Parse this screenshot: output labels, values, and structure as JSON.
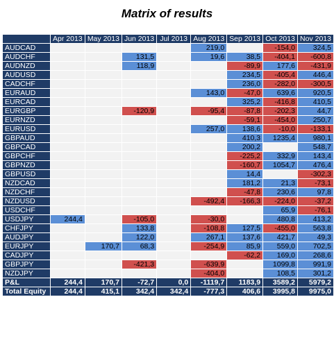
{
  "chart_data": {
    "type": "heatmap",
    "title": "Matrix of results",
    "columns": [
      "Apr 2013",
      "May 2013",
      "Jun 2013",
      "Jul 2013",
      "Aug 2013",
      "Sep 2013",
      "Oct 2013",
      "Nov 2013"
    ],
    "rows": [
      {
        "pair": "AUDCAD",
        "values": [
          null,
          null,
          null,
          null,
          "219,0",
          null,
          "-154,0",
          "324,5"
        ]
      },
      {
        "pair": "AUDCHF",
        "values": [
          null,
          null,
          "131,5",
          null,
          "19,6",
          "38,5",
          "-404,1",
          "-600,8"
        ]
      },
      {
        "pair": "AUDNZD",
        "values": [
          null,
          null,
          "118,9",
          null,
          null,
          "-89,9",
          "177,6",
          "-431,9"
        ]
      },
      {
        "pair": "AUDUSD",
        "values": [
          null,
          null,
          null,
          null,
          null,
          "234,5",
          "-405,4",
          "446,4"
        ]
      },
      {
        "pair": "CADCHF",
        "values": [
          null,
          null,
          null,
          null,
          null,
          "236,0",
          "-282,0",
          "-300,5"
        ]
      },
      {
        "pair": "EURAUD",
        "values": [
          null,
          null,
          null,
          null,
          "143,0",
          "-47,0",
          "639,6",
          "920,5"
        ]
      },
      {
        "pair": "EURCAD",
        "values": [
          null,
          null,
          null,
          null,
          null,
          "325,2",
          "-416,8",
          "410,5"
        ]
      },
      {
        "pair": "EURGBP",
        "values": [
          null,
          null,
          "-120,9",
          null,
          "-95,4",
          "-87,8",
          "-202,3",
          "44,7"
        ]
      },
      {
        "pair": "EURNZD",
        "values": [
          null,
          null,
          null,
          null,
          null,
          "-59,1",
          "-454,0",
          "250,7"
        ]
      },
      {
        "pair": "EURUSD",
        "values": [
          null,
          null,
          null,
          null,
          "257,0",
          "138,6",
          "-10,0",
          "-133,1"
        ]
      },
      {
        "pair": "GBPAUD",
        "values": [
          null,
          null,
          null,
          null,
          null,
          "410,3",
          "1235,4",
          "980,1"
        ]
      },
      {
        "pair": "GBPCAD",
        "values": [
          null,
          null,
          null,
          null,
          null,
          "200,2",
          null,
          "548,7"
        ]
      },
      {
        "pair": "GBPCHF",
        "values": [
          null,
          null,
          null,
          null,
          null,
          "-225,2",
          "332,9",
          "143,4"
        ]
      },
      {
        "pair": "GBPNZD",
        "values": [
          null,
          null,
          null,
          null,
          null,
          "-160,7",
          "1054,7",
          "476,4"
        ]
      },
      {
        "pair": "GBPUSD",
        "values": [
          null,
          null,
          null,
          null,
          null,
          "14,4",
          null,
          "-302,3"
        ]
      },
      {
        "pair": "NZDCAD",
        "values": [
          null,
          null,
          null,
          null,
          null,
          "181,2",
          "21,3",
          "-73,1"
        ]
      },
      {
        "pair": "NZDCHF",
        "values": [
          null,
          null,
          null,
          null,
          null,
          "-47,8",
          "230,6",
          "97,8"
        ]
      },
      {
        "pair": "NZDUSD",
        "values": [
          null,
          null,
          null,
          null,
          "-492,4",
          "-166,3",
          "-224,0",
          "-37,2"
        ]
      },
      {
        "pair": "USDCHF",
        "values": [
          null,
          null,
          null,
          null,
          null,
          null,
          "65,9",
          "-76,1"
        ]
      },
      {
        "pair": "USDJPY",
        "values": [
          "244,4",
          null,
          "-105,0",
          null,
          "-30,0",
          null,
          "480,8",
          "413,2"
        ]
      },
      {
        "pair": "CHFJPY",
        "values": [
          null,
          null,
          "133,8",
          null,
          "-108,8",
          "127,5",
          "-455,0",
          "563,8"
        ]
      },
      {
        "pair": "AUDJPY",
        "values": [
          null,
          null,
          "122,0",
          null,
          "267,1",
          "137,6",
          "421,7",
          "49,3"
        ]
      },
      {
        "pair": "EURJPY",
        "values": [
          null,
          "170,7",
          "68,3",
          null,
          "-254,9",
          "85,9",
          "559,0",
          "702,5"
        ]
      },
      {
        "pair": "CADJPY",
        "values": [
          null,
          null,
          null,
          null,
          null,
          "-62,2",
          "169,0",
          "268,6"
        ]
      },
      {
        "pair": "GBPJPY",
        "values": [
          null,
          null,
          "-421,3",
          null,
          "-639,9",
          null,
          "1099,8",
          "991,9"
        ]
      },
      {
        "pair": "NZDJPY",
        "values": [
          null,
          null,
          null,
          null,
          "-404,0",
          null,
          "108,5",
          "301,2"
        ]
      }
    ],
    "summary": [
      {
        "label": "P&L",
        "values": [
          "244,4",
          "170,7",
          "-72,7",
          "0,0",
          "-1119,7",
          "1183,9",
          "3589,2",
          "5979,2"
        ]
      },
      {
        "label": "Total Equity",
        "values": [
          "244,4",
          "415,1",
          "342,4",
          "342,4",
          "-777,3",
          "406,6",
          "3995,8",
          "9975,0"
        ]
      }
    ],
    "colors": {
      "header": "#1f3b66",
      "positive": "#5b8fd6",
      "negative": "#d0504e",
      "empty": "#f2f2f2"
    }
  }
}
